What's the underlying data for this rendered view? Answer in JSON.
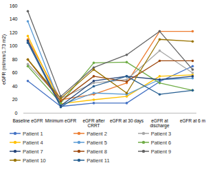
{
  "chart_data": {
    "type": "line",
    "y_label": "eGFR (ml/min/1.73 m2)",
    "categories": [
      "Baseline eGFR",
      "Minimum eGFR",
      "eGFR after CRRT",
      "eGFR at 30 days",
      "eGFR at discharge",
      "eGFR at 6 m"
    ],
    "series": [
      {
        "name": "Patient 1",
        "color": "#4472c4",
        "values": [
          48,
          10,
          15,
          15,
          47,
          70
        ]
      },
      {
        "name": "Patient 2",
        "color": "#ed7d31",
        "values": [
          110,
          20,
          28,
          45,
          122,
          122
        ]
      },
      {
        "name": "Patient 3",
        "color": "#a5a5a5",
        "values": [
          73,
          22,
          45,
          50,
          93,
          60
        ]
      },
      {
        "name": "Patient 4",
        "color": "#ffc000",
        "values": [
          115,
          14,
          20,
          25,
          55,
          57
        ]
      },
      {
        "name": "Patient 5",
        "color": "#5b9bd5",
        "values": [
          137,
          12,
          30,
          28,
          50,
          52
        ]
      },
      {
        "name": "Patient 6",
        "color": "#70ad47",
        "values": [
          70,
          15,
          75,
          76,
          45,
          34
        ]
      },
      {
        "name": "Patient 7",
        "color": "#264478",
        "values": [
          108,
          11,
          48,
          55,
          50,
          55
        ]
      },
      {
        "name": "Patient 8",
        "color": "#9e480e",
        "values": [
          80,
          18,
          55,
          47,
          78,
          78
        ]
      },
      {
        "name": "Patient 9",
        "color": "#636363",
        "values": [
          152,
          25,
          68,
          87,
          122,
          65
        ]
      },
      {
        "name": "Patient 10",
        "color": "#997300",
        "values": [
          80,
          22,
          65,
          30,
          110,
          107
        ]
      },
      {
        "name": "Patient 11",
        "color": "#255e91",
        "values": [
          105,
          9,
          40,
          55,
          28,
          34
        ]
      }
    ],
    "ylim": [
      0,
      160
    ],
    "yticks": [
      0,
      20,
      40,
      60,
      80,
      100,
      120,
      140,
      160
    ],
    "grid": false,
    "marker": "circle",
    "legend": "bottom"
  }
}
